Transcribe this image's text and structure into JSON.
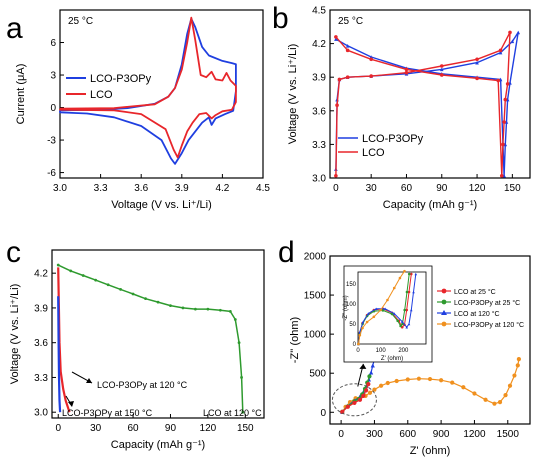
{
  "panel_letters": [
    "a",
    "b",
    "c",
    "d"
  ],
  "colors": {
    "blue": "#1f3fe0",
    "red": "#e8262b",
    "green": "#2e9a2e",
    "orange": "#f0901e",
    "axis": "#000000"
  },
  "chart_data": [
    {
      "id": "a",
      "type": "line",
      "annotation": "25 °C",
      "xlabel": "Voltage (V vs. Li⁺/Li)",
      "ylabel": "Current (μA)",
      "xlim": [
        3.0,
        4.5
      ],
      "ylim": [
        -6.5,
        9
      ],
      "xticks": [
        "3.0",
        "3.3",
        "3.6",
        "3.9",
        "4.2",
        "4.5"
      ],
      "yticks": [
        "-6",
        "-3",
        "0",
        "3",
        "6"
      ],
      "legend_position": "middle-left",
      "series": [
        {
          "name": "LCO-P3OPy",
          "color": "blue",
          "points": [
            [
              3.0,
              -0.25
            ],
            [
              3.3,
              -0.2
            ],
            [
              3.5,
              -0.05
            ],
            [
              3.7,
              0.35
            ],
            [
              3.8,
              1.0
            ],
            [
              3.85,
              1.8
            ],
            [
              3.9,
              4.0
            ],
            [
              3.94,
              6.8
            ],
            [
              3.97,
              8.2
            ],
            [
              4.0,
              7.4
            ],
            [
              4.05,
              5.6
            ],
            [
              4.1,
              4.8
            ],
            [
              4.2,
              4.3
            ],
            [
              4.27,
              4.1
            ],
            [
              4.3,
              4.0
            ],
            [
              4.3,
              1.5
            ],
            [
              4.28,
              -0.3
            ],
            [
              4.22,
              -0.6
            ],
            [
              4.15,
              -1.0
            ],
            [
              4.12,
              -1.6
            ],
            [
              4.1,
              -0.9
            ],
            [
              4.05,
              -1.4
            ],
            [
              4.0,
              -2.2
            ],
            [
              3.95,
              -3.0
            ],
            [
              3.9,
              -4.2
            ],
            [
              3.85,
              -5.2
            ],
            [
              3.82,
              -4.7
            ],
            [
              3.75,
              -3.0
            ],
            [
              3.6,
              -1.7
            ],
            [
              3.4,
              -0.9
            ],
            [
              3.2,
              -0.55
            ],
            [
              3.0,
              -0.45
            ]
          ]
        },
        {
          "name": "LCO",
          "color": "red",
          "points": [
            [
              3.0,
              -0.1
            ],
            [
              3.4,
              -0.05
            ],
            [
              3.7,
              0.3
            ],
            [
              3.8,
              1.0
            ],
            [
              3.85,
              1.8
            ],
            [
              3.9,
              3.5
            ],
            [
              3.94,
              6.0
            ],
            [
              3.97,
              8.3
            ],
            [
              4.0,
              6.2
            ],
            [
              4.04,
              3.0
            ],
            [
              4.08,
              2.8
            ],
            [
              4.12,
              3.3
            ],
            [
              4.15,
              2.6
            ],
            [
              4.2,
              2.5
            ],
            [
              4.23,
              3.2
            ],
            [
              4.26,
              2.5
            ],
            [
              4.3,
              2.0
            ],
            [
              4.3,
              0.5
            ],
            [
              4.27,
              -0.2
            ],
            [
              4.2,
              -0.35
            ],
            [
              4.15,
              -0.7
            ],
            [
              4.12,
              -1.0
            ],
            [
              4.08,
              -0.5
            ],
            [
              4.03,
              -0.6
            ],
            [
              3.98,
              -1.4
            ],
            [
              3.94,
              -2.2
            ],
            [
              3.9,
              -3.5
            ],
            [
              3.87,
              -4.6
            ],
            [
              3.84,
              -3.9
            ],
            [
              3.78,
              -2.0
            ],
            [
              3.6,
              -0.6
            ],
            [
              3.4,
              -0.25
            ],
            [
              3.0,
              -0.2
            ]
          ]
        }
      ]
    },
    {
      "id": "b",
      "type": "line",
      "annotation": "25 °C",
      "xlabel": "Capacity (mAh g⁻¹)",
      "ylabel": "Voltage (V vs. Li⁺/Li)",
      "xlim": [
        -5,
        165
      ],
      "ylim": [
        3.0,
        4.5
      ],
      "xticks": [
        "0",
        "30",
        "60",
        "90",
        "120",
        "150"
      ],
      "yticks": [
        "3.0",
        "3.3",
        "3.6",
        "3.9",
        "4.2",
        "4.5"
      ],
      "legend_position": "bottom-left",
      "series": [
        {
          "name": "LCO-P3OPy",
          "color": "blue",
          "points": [
            [
              0,
              3.08
            ],
            [
              1,
              3.7
            ],
            [
              3,
              3.88
            ],
            [
              10,
              3.9
            ],
            [
              30,
              3.91
            ],
            [
              60,
              3.93
            ],
            [
              90,
              3.97
            ],
            [
              120,
              4.03
            ],
            [
              140,
              4.12
            ],
            [
              150,
              4.22
            ],
            [
              155,
              4.3
            ],
            [
              148,
              3.85
            ],
            [
              146,
              3.7
            ],
            [
              145,
              3.5
            ],
            [
              144,
              3.3
            ],
            [
              143,
              3.02
            ],
            [
              140,
              3.88
            ],
            [
              120,
              3.9
            ],
            [
              90,
              3.93
            ],
            [
              60,
              3.98
            ],
            [
              30,
              4.08
            ],
            [
              10,
              4.18
            ],
            [
              0,
              4.24
            ]
          ]
        },
        {
          "name": "LCO",
          "color": "red",
          "points": [
            [
              0,
              3.02
            ],
            [
              1,
              3.65
            ],
            [
              3,
              3.88
            ],
            [
              10,
              3.9
            ],
            [
              30,
              3.91
            ],
            [
              60,
              3.94
            ],
            [
              90,
              4.0
            ],
            [
              120,
              4.06
            ],
            [
              140,
              4.14
            ],
            [
              148,
              4.3
            ],
            [
              146,
              3.84
            ],
            [
              144,
              3.7
            ],
            [
              143,
              3.5
            ],
            [
              142,
              3.3
            ],
            [
              141,
              3.02
            ],
            [
              138,
              3.87
            ],
            [
              120,
              3.89
            ],
            [
              90,
              3.92
            ],
            [
              60,
              3.97
            ],
            [
              30,
              4.06
            ],
            [
              10,
              4.14
            ],
            [
              0,
              4.26
            ]
          ]
        }
      ]
    },
    {
      "id": "c",
      "type": "line",
      "xlabel": "Capacity (mAh g⁻¹)",
      "ylabel": "Voltage (V vs. Li⁺/Li)",
      "xlim": [
        -5,
        165
      ],
      "ylim": [
        2.95,
        4.4
      ],
      "xticks": [
        "0",
        "30",
        "60",
        "90",
        "120",
        "150"
      ],
      "yticks": [
        "3.0",
        "3.3",
        "3.6",
        "3.9",
        "4.2"
      ],
      "annotations": [
        "LCO-P3OPy at 120 °C",
        "LCO-P3OPy at 150 °C",
        "LCO at 120 °C"
      ],
      "series": [
        {
          "name": "LCO at 120 °C",
          "color": "green",
          "points": [
            [
              0,
              4.27
            ],
            [
              10,
              4.22
            ],
            [
              20,
              4.18
            ],
            [
              30,
              4.14
            ],
            [
              40,
              4.1
            ],
            [
              50,
              4.06
            ],
            [
              60,
              4.02
            ],
            [
              70,
              3.98
            ],
            [
              80,
              3.95
            ],
            [
              90,
              3.92
            ],
            [
              100,
              3.9
            ],
            [
              110,
              3.89
            ],
            [
              120,
              3.89
            ],
            [
              130,
              3.88
            ],
            [
              138,
              3.87
            ],
            [
              142,
              3.8
            ],
            [
              145,
              3.6
            ],
            [
              147,
              3.3
            ],
            [
              148,
              3.0
            ]
          ]
        },
        {
          "name": "LCO-P3OPy at 120 °C",
          "color": "red",
          "points": [
            [
              0,
              4.25
            ],
            [
              0.5,
              3.9
            ],
            [
              1,
              3.6
            ],
            [
              2,
              3.35
            ],
            [
              4,
              3.2
            ],
            [
              6,
              3.1
            ],
            [
              9,
              3.0
            ]
          ]
        },
        {
          "name": "LCO-P3OPy at 150 °C",
          "color": "blue",
          "points": [
            [
              0,
              4.0
            ],
            [
              0.3,
              3.6
            ],
            [
              0.6,
              3.3
            ],
            [
              1,
              3.1
            ],
            [
              1.5,
              3.0
            ]
          ]
        }
      ]
    },
    {
      "id": "d",
      "type": "scatter",
      "xlabel": "Z' (ohm)",
      "ylabel": "-Z'' (ohm)",
      "xlim": [
        -100,
        1700
      ],
      "ylim": [
        -150,
        2000
      ],
      "xticks": [
        "0",
        "300",
        "600",
        "900",
        "1200",
        "1500"
      ],
      "yticks": [
        "0",
        "500",
        "1000",
        "1500",
        "2000"
      ],
      "legend_position": "inset-right",
      "series": [
        {
          "name": "LCO at 25 °C",
          "color": "red"
        },
        {
          "name": "LCO-P3OPy at 25 °C",
          "color": "green"
        },
        {
          "name": "LCO at 120 °C",
          "color": "blue"
        },
        {
          "name": "LCO-P3OPy at 120 °C",
          "color": "orange"
        }
      ],
      "main_points": {
        "orange": [
          [
            10,
            5
          ],
          [
            40,
            70
          ],
          [
            80,
            130
          ],
          [
            130,
            180
          ],
          [
            180,
            200
          ],
          [
            220,
            210
          ],
          [
            260,
            250
          ],
          [
            300,
            290
          ],
          [
            360,
            340
          ],
          [
            420,
            375
          ],
          [
            500,
            400
          ],
          [
            600,
            420
          ],
          [
            700,
            430
          ],
          [
            800,
            425
          ],
          [
            900,
            410
          ],
          [
            1000,
            380
          ],
          [
            1100,
            320
          ],
          [
            1200,
            240
          ],
          [
            1300,
            160
          ],
          [
            1380,
            110
          ],
          [
            1430,
            130
          ],
          [
            1480,
            220
          ],
          [
            1520,
            340
          ],
          [
            1560,
            470
          ],
          [
            1590,
            600
          ],
          [
            1600,
            680
          ]
        ],
        "blue": [
          [
            10,
            5
          ],
          [
            60,
            80
          ],
          [
            120,
            150
          ],
          [
            170,
            200
          ],
          [
            200,
            260
          ],
          [
            230,
            340
          ],
          [
            250,
            420
          ],
          [
            270,
            510
          ],
          [
            285,
            600
          ],
          [
            300,
            680
          ]
        ],
        "green": [
          [
            10,
            5
          ],
          [
            60,
            75
          ],
          [
            120,
            140
          ],
          [
            160,
            170
          ],
          [
            190,
            230
          ],
          [
            215,
            300
          ],
          [
            235,
            380
          ],
          [
            255,
            460
          ]
        ],
        "red": [
          [
            10,
            5
          ],
          [
            60,
            70
          ],
          [
            120,
            120
          ],
          [
            170,
            160
          ],
          [
            200,
            210
          ],
          [
            225,
            280
          ],
          [
            245,
            360
          ]
        ]
      },
      "inset": {
        "xlim": [
          0,
          300
        ],
        "ylim": [
          0,
          180
        ],
        "xticks": [
          "0",
          "100",
          "200"
        ],
        "yticks": [
          "0",
          "50",
          "100",
          "150"
        ],
        "ylabel": "-Z'' (ohm)",
        "xlabel": "Z' (ohm)",
        "points": {
          "red": [
            [
              2,
              0
            ],
            [
              8,
              28
            ],
            [
              20,
              52
            ],
            [
              40,
              72
            ],
            [
              70,
              85
            ],
            [
              110,
              88
            ],
            [
              150,
              78
            ],
            [
              180,
              58
            ],
            [
              195,
              42
            ],
            [
              205,
              48
            ],
            [
              215,
              85
            ],
            [
              225,
              130
            ],
            [
              235,
              175
            ]
          ],
          "green": [
            [
              2,
              0
            ],
            [
              8,
              26
            ],
            [
              20,
              50
            ],
            [
              40,
              70
            ],
            [
              70,
              82
            ],
            [
              110,
              84
            ],
            [
              150,
              75
            ],
            [
              175,
              58
            ],
            [
              188,
              45
            ],
            [
              196,
              50
            ],
            [
              206,
              85
            ],
            [
              216,
              130
            ],
            [
              226,
              175
            ]
          ],
          "blue": [
            [
              2,
              0
            ],
            [
              8,
              30
            ],
            [
              22,
              55
            ],
            [
              45,
              76
            ],
            [
              80,
              88
            ],
            [
              120,
              88
            ],
            [
              160,
              76
            ],
            [
              195,
              56
            ],
            [
              215,
              42
            ],
            [
              225,
              50
            ],
            [
              235,
              85
            ],
            [
              245,
              130
            ],
            [
              255,
              175
            ]
          ],
          "orange": [
            [
              2,
              0
            ],
            [
              8,
              22
            ],
            [
              20,
              40
            ],
            [
              40,
              55
            ],
            [
              70,
              68
            ],
            [
              100,
              85
            ],
            [
              130,
              110
            ],
            [
              160,
              140
            ],
            [
              185,
              165
            ],
            [
              205,
              182
            ]
          ]
        }
      }
    }
  ]
}
